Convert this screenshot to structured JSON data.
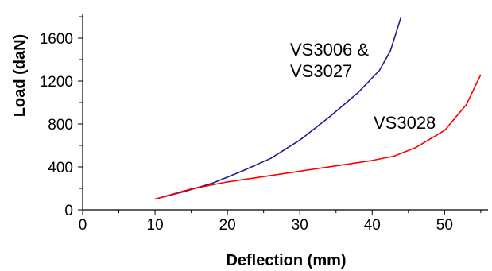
{
  "chart_data": {
    "type": "line",
    "title": "",
    "xlabel": "Deflection (mm)",
    "ylabel": "Load (daN)",
    "xlim": [
      0,
      56
    ],
    "ylim": [
      0,
      1800
    ],
    "xticks": [
      0,
      10,
      20,
      30,
      40,
      50
    ],
    "yticks": [
      0,
      400,
      800,
      1200,
      1600
    ],
    "grid": false,
    "series": [
      {
        "name": "VS3006 & VS3027",
        "label_lines": [
          "VS3006 &",
          "VS3027"
        ],
        "color": "#1e1e8c",
        "x": [
          10,
          14,
          18,
          22,
          26,
          30,
          34,
          38,
          41,
          42.5,
          44
        ],
        "y": [
          100,
          170,
          250,
          360,
          480,
          650,
          860,
          1090,
          1300,
          1480,
          1800
        ]
      },
      {
        "name": "VS3028",
        "label_lines": [
          "VS3028"
        ],
        "color": "#ff0000",
        "x": [
          10,
          15,
          20,
          25,
          30,
          35,
          40,
          43,
          46,
          50,
          53,
          55
        ],
        "y": [
          100,
          195,
          260,
          310,
          360,
          410,
          460,
          500,
          580,
          740,
          980,
          1260
        ]
      }
    ]
  }
}
